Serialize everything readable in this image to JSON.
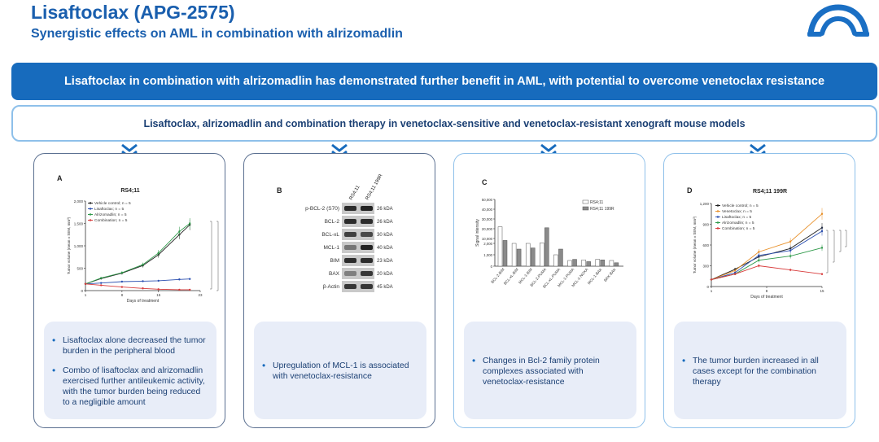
{
  "header": {
    "title": "Lisaftoclax (APG-2575)",
    "subtitle": "Synergistic effects on AML in combination with alrizomadlin"
  },
  "banner": {
    "text": "Lisaftoclax in combination with alrizomadlin has demonstrated further benefit in AML, with potential to overcome venetoclax resistance"
  },
  "subbanner": {
    "text": "Lisaftoclax, alrizomadlin and combination therapy in venetoclax-sensitive and venetoclax-resistant xenograft mouse models"
  },
  "colors": {
    "brand": "#1a5fae",
    "banner": "#176bbd",
    "panel_border_dark": "#5a6f90",
    "panel_border_light": "#8ec0ea",
    "note_bg": "#e8edf8",
    "vehicle": "#222222",
    "lisaftoclax": "#2b4fb0",
    "alrizomadlin": "#2f9a4a",
    "combination": "#d83b3b",
    "venetoclax": "#e8912b"
  },
  "panels": [
    {
      "letter": "A",
      "bullets": [
        "Lisaftoclax alone decreased the tumor burden in the peripheral blood",
        "Combo of lisaftoclax and alrizomadlin exercised further antileukemic activity, with the tumor burden being reduced to a negligible amount"
      ]
    },
    {
      "letter": "B",
      "bullets": [
        "Upregulation of MCL-1 is associated with venetoclax-resistance"
      ]
    },
    {
      "letter": "C",
      "bullets": [
        "Changes in Bcl-2 family protein complexes associated with venetoclax-resistance"
      ]
    },
    {
      "letter": "D",
      "bullets": [
        "The tumor burden increased in all cases except for the combination therapy"
      ]
    }
  ],
  "chart_data": [
    {
      "type": "line",
      "title": "RS4;11",
      "xlabel": "Days of treatment",
      "ylabel": "Tumor volume (mean ± SEM, mm³)",
      "xlim": [
        1,
        23
      ],
      "ylim": [
        0,
        2000
      ],
      "xticks": [
        "1",
        "8",
        "15",
        "23"
      ],
      "yticks": [
        "0",
        "500",
        "1,000",
        "1,500",
        "2,000"
      ],
      "significance": "****",
      "series": [
        {
          "name": "Vehicle control; n = 5",
          "color": "#222222",
          "x": [
            1,
            4,
            8,
            12,
            15,
            19,
            21
          ],
          "y": [
            150,
            270,
            390,
            560,
            800,
            1250,
            1470
          ]
        },
        {
          "name": "Lisaftoclax; n = 5",
          "color": "#2b4fb0",
          "x": [
            1,
            4,
            8,
            12,
            15,
            19,
            21
          ],
          "y": [
            150,
            170,
            200,
            210,
            220,
            250,
            260
          ]
        },
        {
          "name": "Alrizomadlin; n = 5",
          "color": "#2f9a4a",
          "x": [
            1,
            4,
            8,
            12,
            15,
            19,
            21
          ],
          "y": [
            150,
            280,
            400,
            580,
            840,
            1320,
            1500
          ]
        },
        {
          "name": "Combination; n = 5",
          "color": "#d83b3b",
          "x": [
            1,
            4,
            8,
            12,
            15,
            19,
            21
          ],
          "y": [
            150,
            120,
            80,
            50,
            30,
            20,
            20
          ]
        }
      ]
    },
    {
      "type": "table",
      "title": "Western blot",
      "columns": [
        "RS4;11",
        "RS4;11 199R"
      ],
      "rows": [
        {
          "label": "p-BCL-2 (S70)",
          "kda": "26 kDA"
        },
        {
          "label": "BCL-2",
          "kda": "26 kDA"
        },
        {
          "label": "BCL-xL",
          "kda": "30 kDA"
        },
        {
          "label": "MCL-1",
          "kda": "40 kDA"
        },
        {
          "label": "BIM",
          "kda": "23 kDA"
        },
        {
          "label": "BAX",
          "kda": "20 kDA"
        },
        {
          "label": "β-Actin",
          "kda": "45 kDA"
        }
      ]
    },
    {
      "type": "bar",
      "ylabel": "Signal intensity",
      "yticks": [
        "0",
        "1,000",
        "2,000",
        "10,000",
        "20,000",
        "30,000",
        "40,000",
        "50,000"
      ],
      "categories": [
        "BCL-2-BIM",
        "BCL-xL-BIM",
        "MCL-1-BIM",
        "BCL-2-PUMA",
        "BCL-xL-PUMA",
        "MCL-1-PUMA",
        "MCL-1-NOXA",
        "MCL-1-BAK",
        "BAX-BAK"
      ],
      "series": [
        {
          "name": "RS4;11",
          "values": [
            22000,
            2000,
            5000,
            5500,
            1000,
            500,
            550,
            600,
            500
          ]
        },
        {
          "name": "RS4;11 199R",
          "values": [
            8000,
            1500,
            1600,
            21000,
            1500,
            600,
            400,
            550,
            300
          ]
        }
      ]
    },
    {
      "type": "line",
      "title": "RS4;11 199R",
      "xlabel": "Days of treatment",
      "ylabel": "Tumor volume (mean ± SEM, mm³)",
      "xlim": [
        1,
        15
      ],
      "ylim": [
        0,
        1200
      ],
      "xticks": [
        "1",
        "8",
        "15"
      ],
      "yticks": [
        "0",
        "300",
        "600",
        "900",
        "1,200"
      ],
      "series": [
        {
          "name": "Vehicle control; n = 5",
          "color": "#222222",
          "x": [
            1,
            4,
            7,
            11,
            15
          ],
          "y": [
            100,
            250,
            430,
            550,
            850
          ]
        },
        {
          "name": "Venetoclax; n = 5",
          "color": "#e8912b",
          "x": [
            1,
            4,
            7,
            11,
            15
          ],
          "y": [
            100,
            230,
            500,
            650,
            1050
          ]
        },
        {
          "name": "Lisaftoclax; n = 5",
          "color": "#2b4fb0",
          "x": [
            1,
            4,
            7,
            11,
            15
          ],
          "y": [
            100,
            200,
            450,
            520,
            800
          ]
        },
        {
          "name": "Alrizomadlin; n = 5",
          "color": "#2f9a4a",
          "x": [
            1,
            4,
            7,
            11,
            15
          ],
          "y": [
            100,
            180,
            380,
            440,
            560
          ]
        },
        {
          "name": "Combination; n = 5",
          "color": "#d83b3b",
          "x": [
            1,
            4,
            7,
            11,
            15
          ],
          "y": [
            100,
            180,
            300,
            240,
            180
          ]
        }
      ]
    }
  ]
}
